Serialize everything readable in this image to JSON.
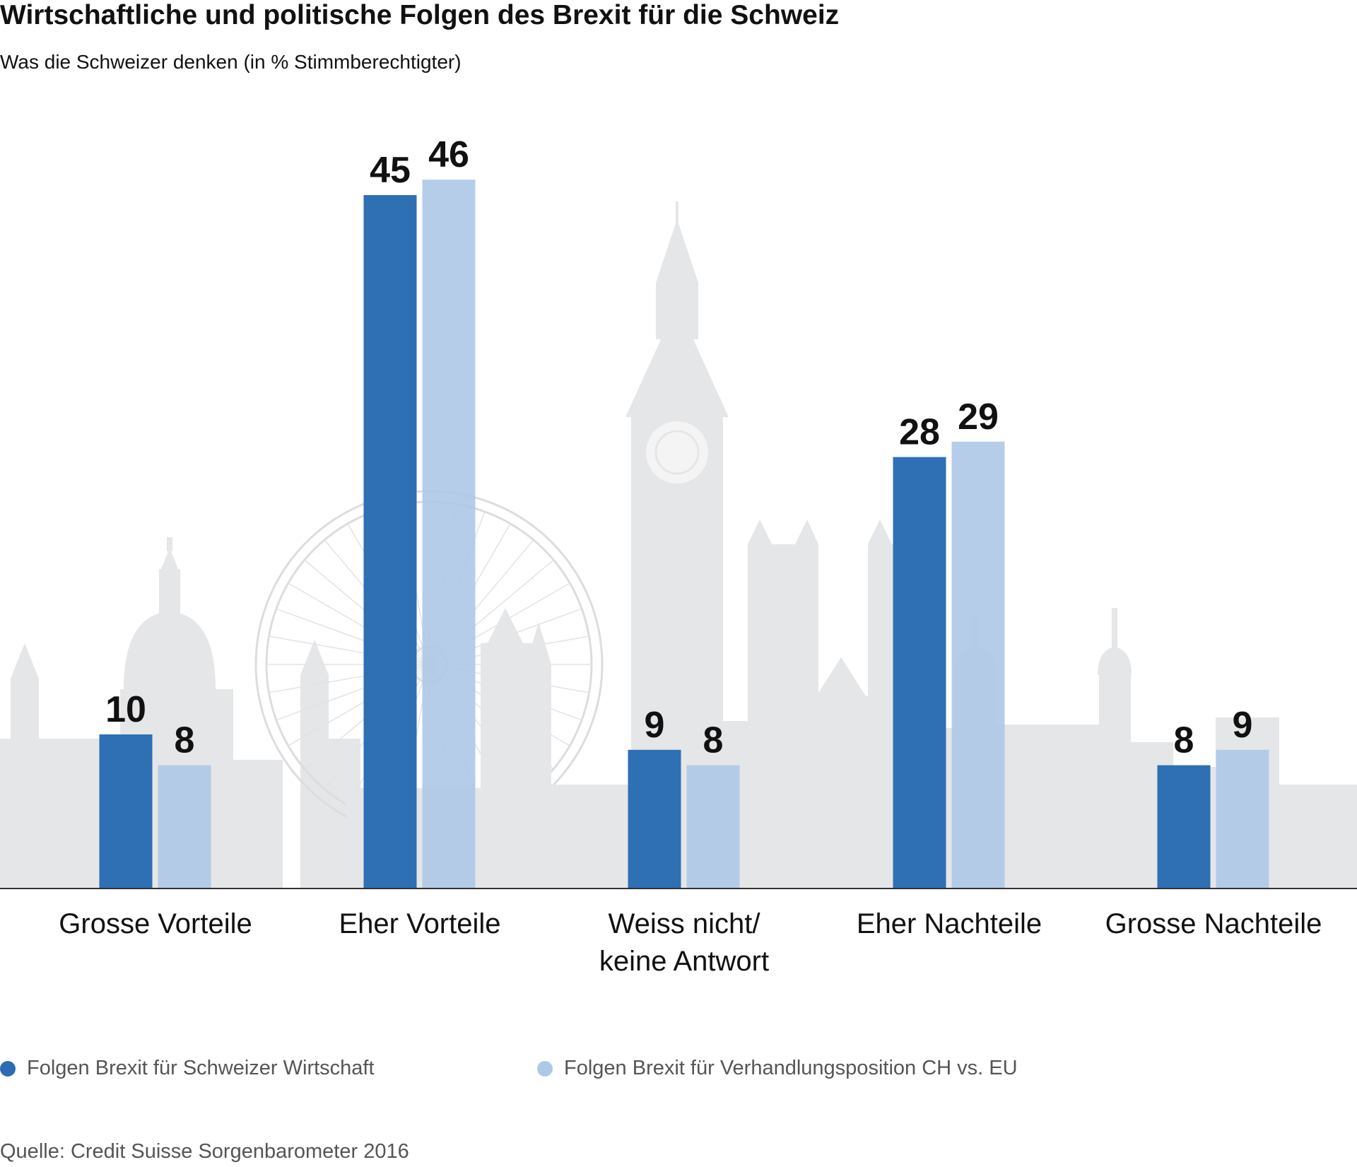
{
  "chart_data": {
    "type": "bar",
    "title": "Wirtschaftliche und politische Folgen des Brexit für die Schweiz",
    "subtitle": "Was die Schweizer denken (in % Stimmberechtigter)",
    "categories": [
      [
        "Grosse Vorteile"
      ],
      [
        "Eher Vorteile"
      ],
      [
        "Weiss nicht/",
        "keine Antwort"
      ],
      [
        "Eher Nachteile"
      ],
      [
        "Grosse Nachteile"
      ]
    ],
    "series": [
      {
        "name": "Folgen Brexit für Schweizer Wirtschaft",
        "color": "#2b6cb3",
        "values": [
          10,
          45,
          9,
          28,
          8
        ]
      },
      {
        "name": "Folgen Brexit für Verhandlungsposition CH vs. EU",
        "color": "#aec8e8",
        "values": [
          8,
          46,
          8,
          29,
          9
        ]
      }
    ],
    "ylim": [
      0,
      50
    ],
    "grid": false,
    "legend_position": "bottom",
    "source": "Quelle: Credit Suisse Sorgenbarometer 2016",
    "background": "london-skyline-silhouette"
  }
}
